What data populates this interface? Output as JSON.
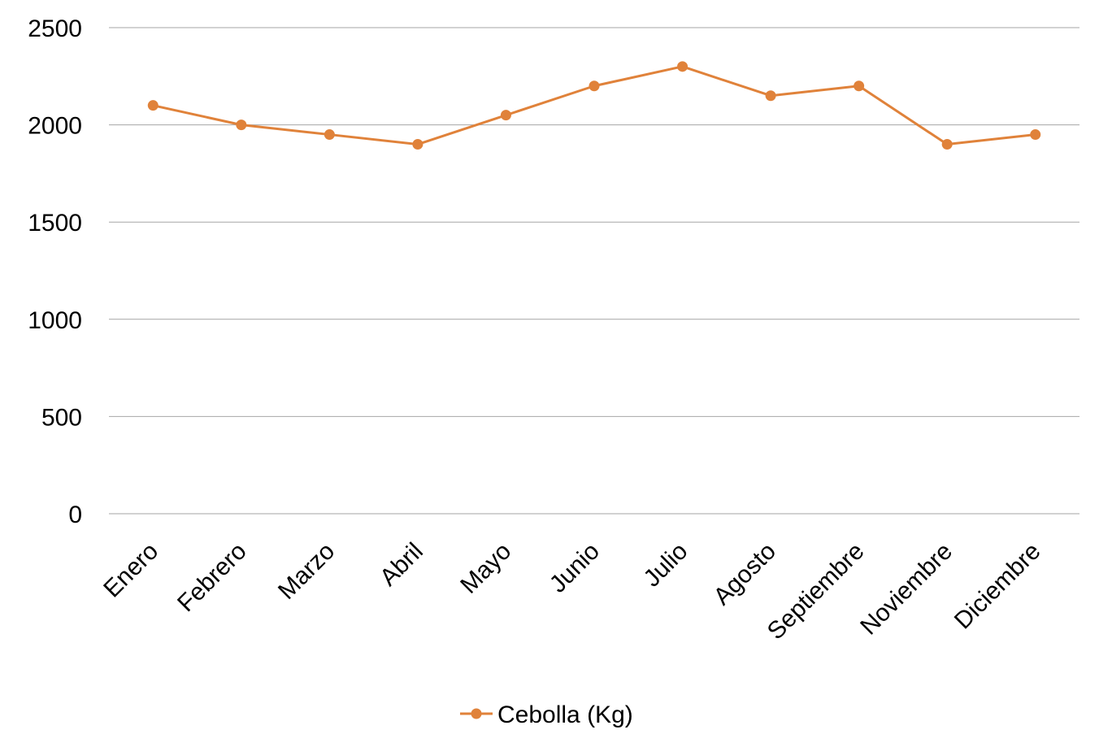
{
  "chart_data": {
    "type": "line",
    "categories": [
      "Enero",
      "Febrero",
      "Marzo",
      "Abril",
      "Mayo",
      "Junio",
      "Julio",
      "Agosto",
      "Septiembre",
      "Noviembre",
      "Diciembre"
    ],
    "series": [
      {
        "name": "Cebolla (Kg)",
        "values": [
          2100,
          2000,
          1950,
          1900,
          2050,
          2200,
          2300,
          2150,
          2200,
          1900,
          1950
        ],
        "color": "#e0823a"
      }
    ],
    "ylim": [
      0,
      2500
    ],
    "yticks": [
      "0",
      "500",
      "1000",
      "1500",
      "2000",
      "2500"
    ],
    "grid": true,
    "legend_position": "bottom",
    "title": "",
    "xlabel": "",
    "ylabel": ""
  }
}
